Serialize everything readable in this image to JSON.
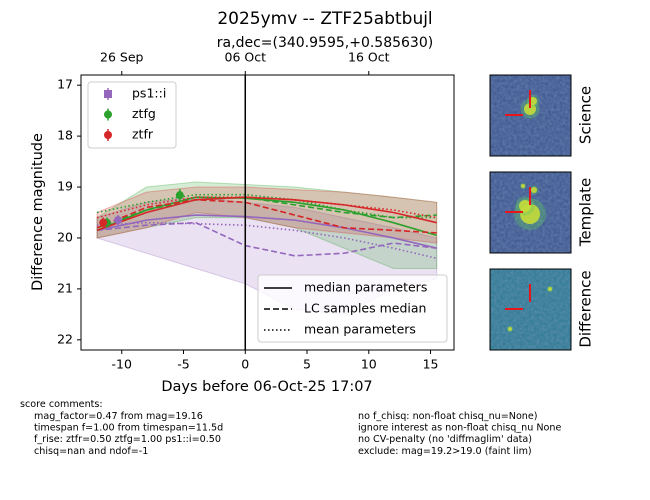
{
  "chart_data": {
    "type": "lightcurve",
    "title": "2025ymv -- ZTF25abtbujl",
    "subtitle": "ra,dec=(340.9595,+0.585630)",
    "x_label": "Days before 06-Oct-25 17:07",
    "y_label": "Difference magnitude",
    "xlim": [
      -13.3,
      16.9
    ],
    "ylim": [
      22.2,
      16.8
    ],
    "xticks": [
      -10,
      -5,
      0,
      5,
      10,
      15
    ],
    "yticks": [
      17,
      18,
      19,
      20,
      21,
      22
    ],
    "top_xticks": [
      {
        "value": -10,
        "label": "26 Sep"
      },
      {
        "value": 0,
        "label": "06 Oct"
      },
      {
        "value": 10,
        "label": "16 Oct"
      }
    ],
    "vline": 0,
    "curve_x": [
      -12,
      -8,
      -4,
      0,
      4,
      8,
      12,
      15.5
    ],
    "filters": [
      {
        "name": "ps1::i",
        "color": "#9467bd",
        "points_x": [
          -10.3
        ],
        "points_y": [
          19.65
        ],
        "points_err": [
          0.1
        ],
        "band_lo": [
          19.6,
          19.3,
          19.2,
          19.3,
          19.4,
          19.6,
          19.8,
          20.0
        ],
        "band_hi": [
          20.0,
          20.3,
          20.6,
          20.9,
          21.4,
          21.5,
          21.0,
          20.8
        ],
        "median": [
          19.85,
          19.65,
          19.55,
          19.58,
          19.65,
          19.8,
          20.0,
          20.2
        ],
        "lc_median": [
          19.85,
          19.75,
          19.7,
          20.15,
          20.35,
          20.3,
          20.1,
          20.2
        ],
        "mean": [
          19.75,
          19.7,
          19.72,
          19.75,
          19.85,
          20.0,
          20.2,
          20.4
        ]
      },
      {
        "name": "ztfg",
        "color": "#2ca02c",
        "points_x": [
          -11.2,
          -5.3
        ],
        "points_y": [
          19.7,
          19.16
        ],
        "points_err": [
          0.1,
          0.12
        ],
        "band_lo": [
          19.6,
          19.0,
          18.9,
          18.95,
          19.0,
          19.1,
          19.2,
          19.3
        ],
        "band_hi": [
          20.0,
          19.8,
          19.6,
          19.6,
          19.8,
          20.2,
          20.6,
          20.6
        ],
        "median": [
          19.85,
          19.45,
          19.2,
          19.22,
          19.3,
          19.45,
          19.7,
          19.95
        ],
        "lc_median": [
          19.8,
          19.45,
          19.25,
          19.2,
          19.35,
          19.5,
          19.6,
          19.55
        ],
        "mean": [
          19.5,
          19.3,
          19.15,
          19.15,
          19.25,
          19.45,
          19.6,
          19.6
        ]
      },
      {
        "name": "ztfr",
        "color": "#d62728",
        "points_x": [
          -11.5
        ],
        "points_y": [
          19.7
        ],
        "points_err": [
          0.1
        ],
        "band_lo": [
          19.5,
          19.1,
          19.0,
          19.0,
          19.05,
          19.1,
          19.2,
          19.3
        ],
        "band_hi": [
          20.0,
          19.8,
          19.5,
          19.6,
          19.8,
          19.9,
          20.0,
          20.1
        ],
        "median": [
          19.85,
          19.5,
          19.25,
          19.2,
          19.25,
          19.35,
          19.5,
          19.7
        ],
        "lc_median": [
          19.8,
          19.4,
          19.25,
          19.3,
          19.55,
          19.8,
          19.85,
          19.9
        ],
        "mean": [
          19.6,
          19.35,
          19.2,
          19.2,
          19.25,
          19.35,
          19.45,
          19.6
        ]
      }
    ],
    "line_styles": [
      {
        "name": "median parameters",
        "key": "median",
        "dash": "none"
      },
      {
        "name": "LC samples median",
        "key": "lc_median",
        "dash": "6 3"
      },
      {
        "name": "mean parameters",
        "key": "mean",
        "dash": "1.5 2.5"
      }
    ],
    "thumbnails": [
      "Science",
      "Template",
      "Difference"
    ],
    "comments_title": "score comments:",
    "comments_left": [
      "mag_factor=0.47 from mag=19.16",
      "timespan f=1.00 from timespan=11.5d",
      "f_rise: ztfr=0.50 ztfg=1.00 ps1::i=0.50",
      "chisq=nan and ndof=-1"
    ],
    "comments_right": [
      "no f_chisq: non-float chisq_nu=None)",
      "ignore interest as non-float chisq_nu None",
      "no CV-penalty (no 'diffmaglim' data)",
      "exclude: mag=19.2>19.0 (faint lim)"
    ]
  }
}
